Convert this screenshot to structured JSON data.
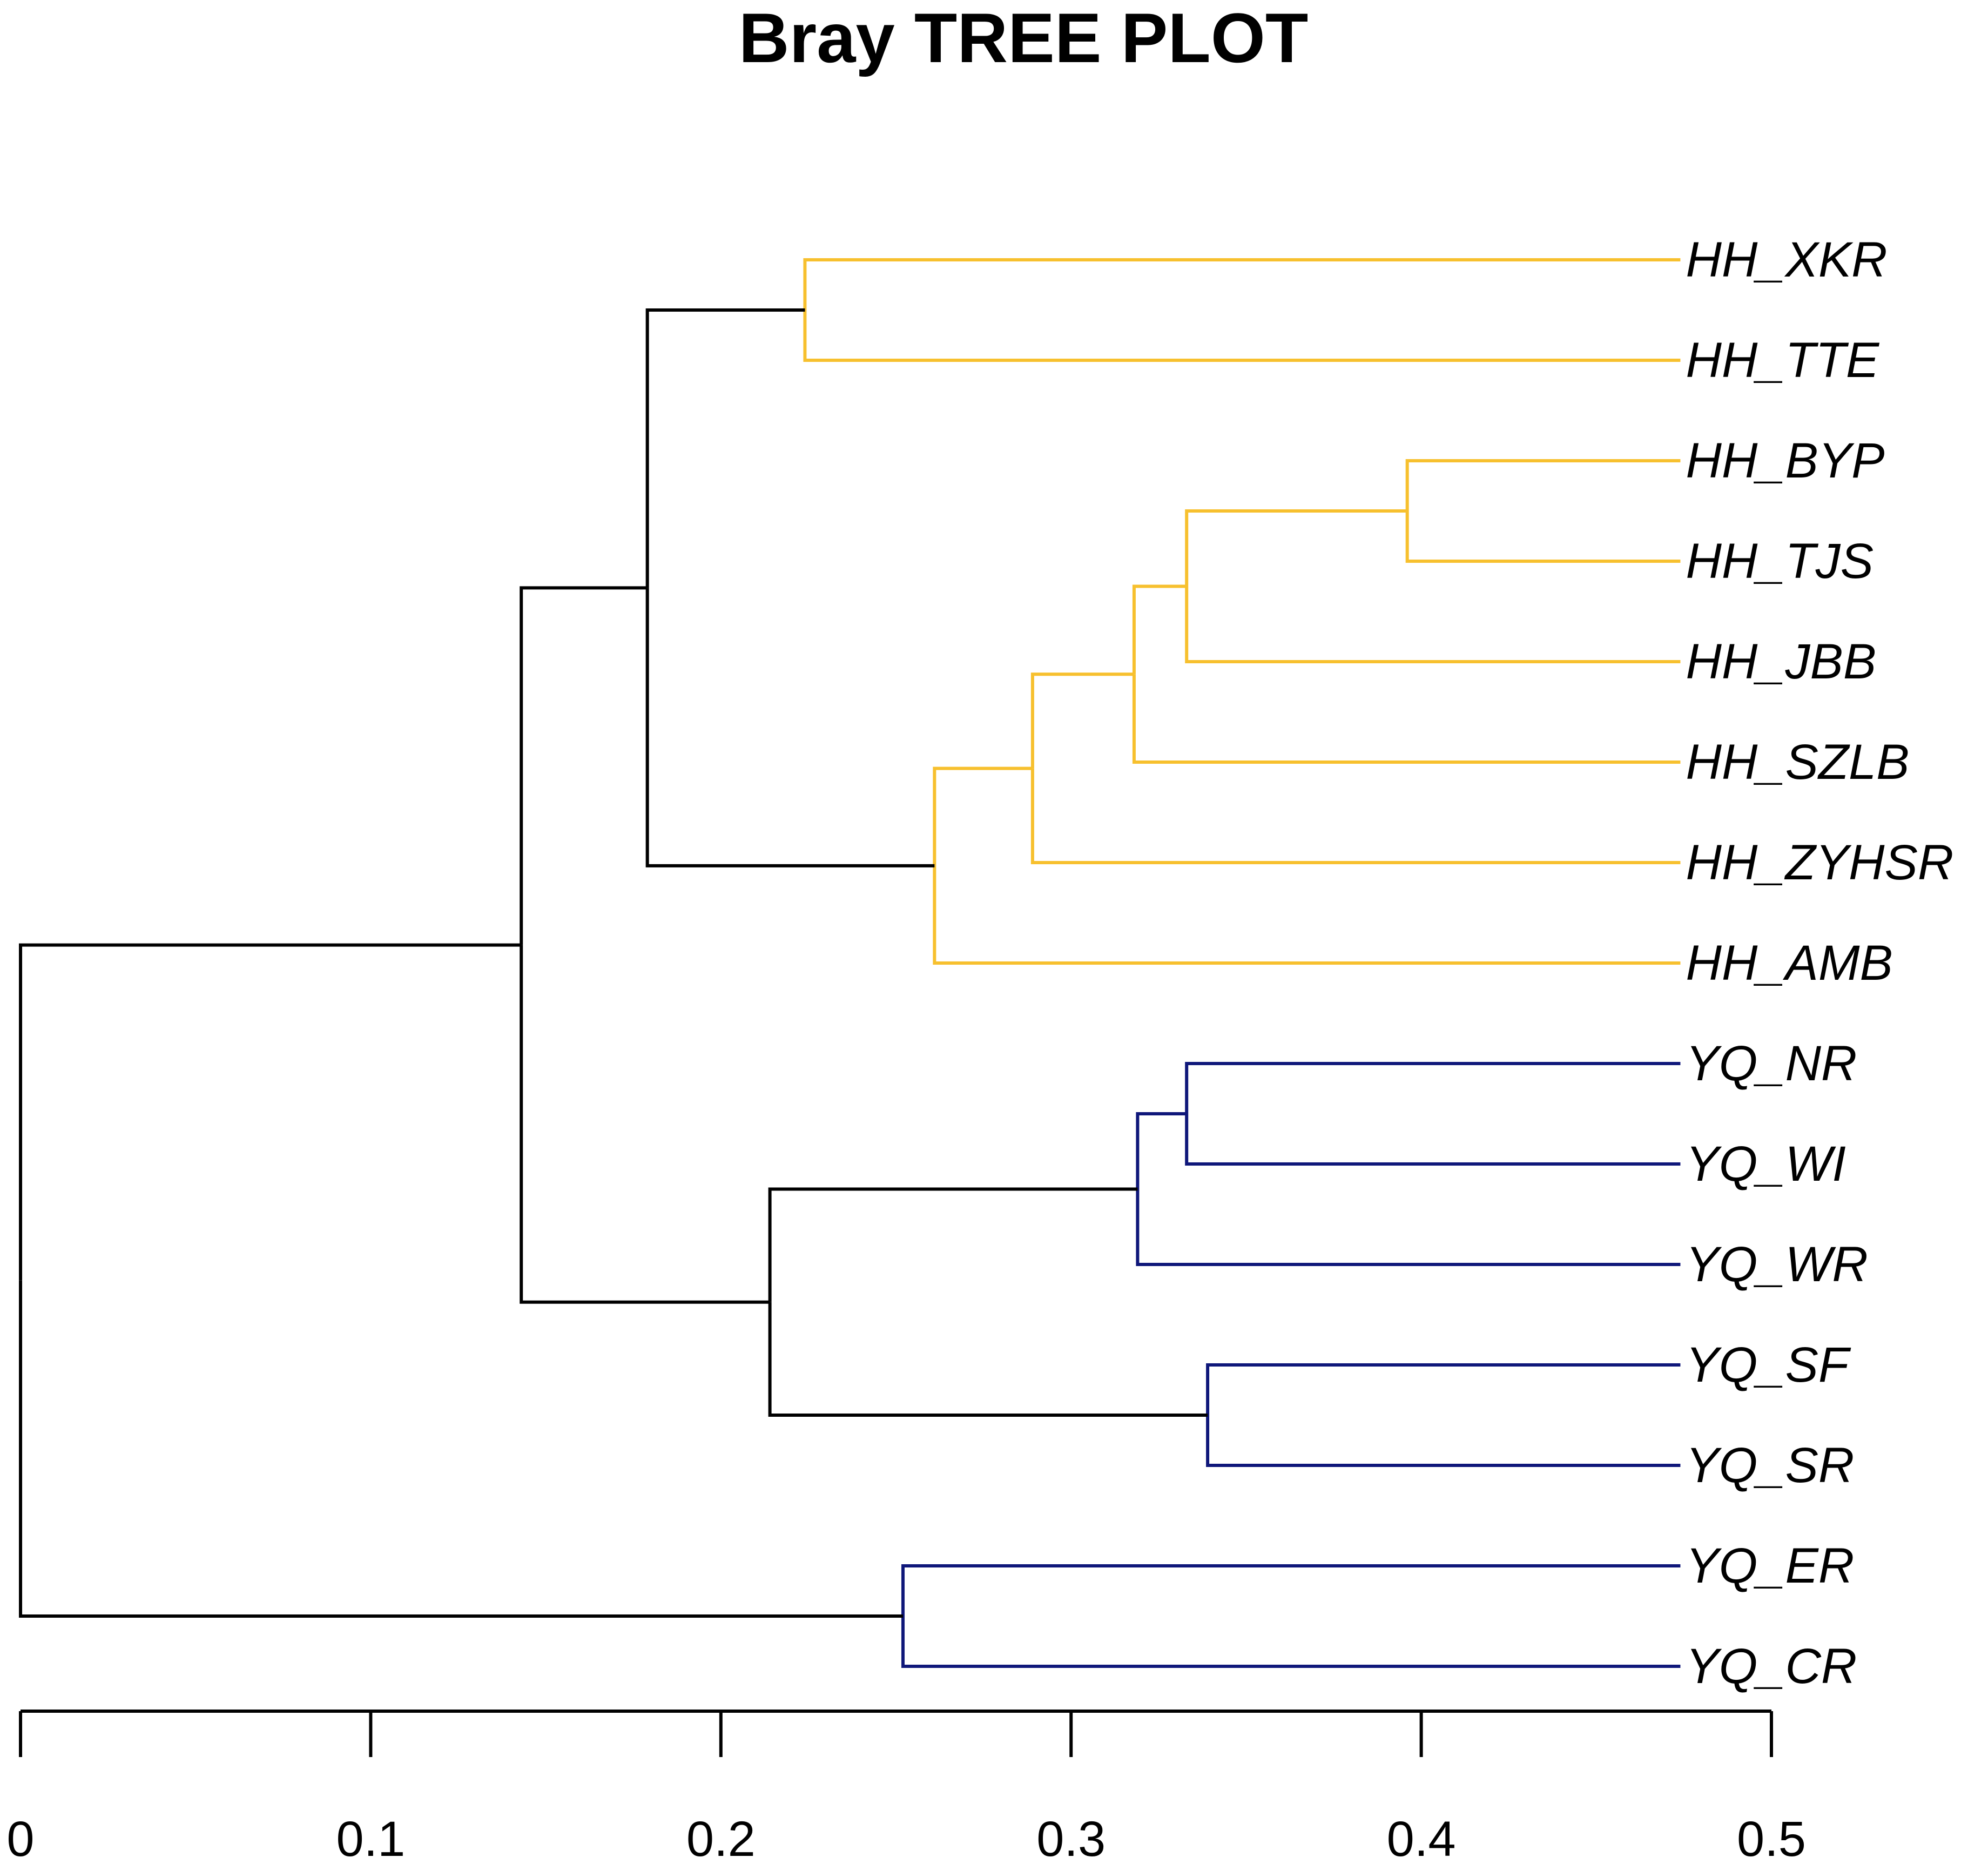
{
  "chart_data": {
    "type": "dendrogram",
    "title": "Bray TREE PLOT",
    "orientation": "horizontal",
    "xlim": [
      0,
      0.5
    ],
    "ticks": [
      {
        "value": 0,
        "label": "0"
      },
      {
        "value": 0.1,
        "label": "0.1"
      },
      {
        "value": 0.2,
        "label": "0.2"
      },
      {
        "value": 0.3,
        "label": "0.3"
      },
      {
        "value": 0.4,
        "label": "0.4"
      },
      {
        "value": 0.5,
        "label": "0.5"
      }
    ],
    "leaf_position": 0.474,
    "colors": {
      "HH": "#f7c02e",
      "YQ": "#0f177a",
      "internal": "#000000"
    },
    "leaves": [
      {
        "id": "HH_XKR",
        "group": "HH"
      },
      {
        "id": "HH_TTE",
        "group": "HH"
      },
      {
        "id": "HH_BYP",
        "group": "HH"
      },
      {
        "id": "HH_TJS",
        "group": "HH"
      },
      {
        "id": "HH_JBB",
        "group": "HH"
      },
      {
        "id": "HH_SZLB",
        "group": "HH"
      },
      {
        "id": "HH_ZYHSR",
        "group": "HH"
      },
      {
        "id": "HH_AMB",
        "group": "HH"
      },
      {
        "id": "YQ_NR",
        "group": "YQ"
      },
      {
        "id": "YQ_WI",
        "group": "YQ"
      },
      {
        "id": "YQ_WR",
        "group": "YQ"
      },
      {
        "id": "YQ_SF",
        "group": "YQ"
      },
      {
        "id": "YQ_SR",
        "group": "YQ"
      },
      {
        "id": "YQ_ER",
        "group": "YQ"
      },
      {
        "id": "YQ_CR",
        "group": "YQ"
      }
    ],
    "merges": [
      {
        "id": "n_xkr_tte",
        "children": [
          "HH_XKR",
          "HH_TTE"
        ],
        "height": 0.224,
        "color": "HH"
      },
      {
        "id": "n_byp_tjs",
        "children": [
          "HH_BYP",
          "HH_TJS"
        ],
        "height": 0.396,
        "color": "HH"
      },
      {
        "id": "n_jbb",
        "children": [
          "n_byp_tjs",
          "HH_JBB"
        ],
        "height": 0.333,
        "color": "HH"
      },
      {
        "id": "n_szlb",
        "children": [
          "n_jbb",
          "HH_SZLB"
        ],
        "height": 0.318,
        "color": "HH"
      },
      {
        "id": "n_zyhsr",
        "children": [
          "n_szlb",
          "HH_ZYHSR"
        ],
        "height": 0.289,
        "color": "HH"
      },
      {
        "id": "n_amb",
        "children": [
          "n_zyhsr",
          "HH_AMB"
        ],
        "height": 0.261,
        "color": "HH"
      },
      {
        "id": "n_hh",
        "children": [
          "n_xkr_tte",
          "n_amb"
        ],
        "height": 0.179,
        "color": "internal"
      },
      {
        "id": "n_nr_wi",
        "children": [
          "YQ_NR",
          "YQ_WI"
        ],
        "height": 0.333,
        "color": "YQ"
      },
      {
        "id": "n_wr",
        "children": [
          "n_nr_wi",
          "YQ_WR"
        ],
        "height": 0.319,
        "color": "YQ"
      },
      {
        "id": "n_sf_sr",
        "children": [
          "YQ_SF",
          "YQ_SR"
        ],
        "height": 0.339,
        "color": "YQ"
      },
      {
        "id": "n_yq5",
        "children": [
          "n_wr",
          "n_sf_sr"
        ],
        "height": 0.214,
        "color": "internal"
      },
      {
        "id": "n_mid",
        "children": [
          "n_hh",
          "n_yq5"
        ],
        "height": 0.143,
        "color": "internal"
      },
      {
        "id": "n_er_cr",
        "children": [
          "YQ_ER",
          "YQ_CR"
        ],
        "height": 0.252,
        "color": "YQ"
      },
      {
        "id": "n_root",
        "children": [
          "n_mid",
          "n_er_cr"
        ],
        "height": 0.0,
        "color": "internal"
      }
    ]
  }
}
